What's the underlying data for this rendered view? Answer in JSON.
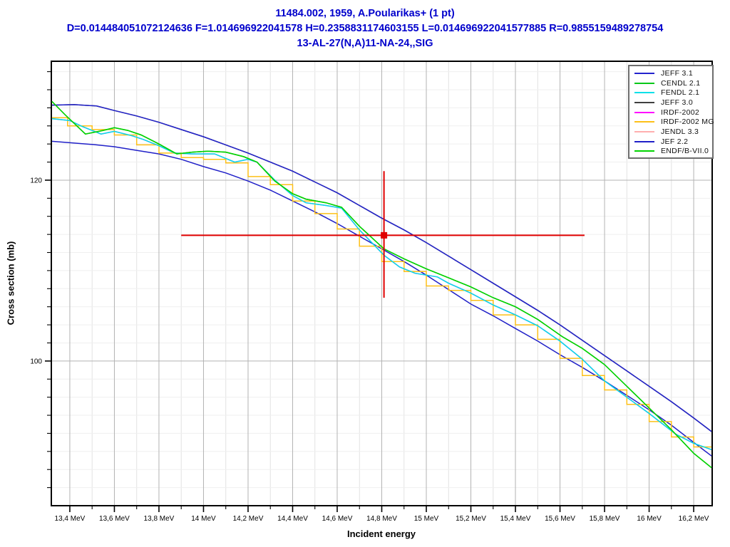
{
  "header": {
    "line1": "11484.002, 1959, A.Poularikas+ (1 pt)",
    "line2": "D=0.014484051072124636 F=1.014696922041578 H=0.2358831174603155 L=0.014696922041577885 R=0.9855159489278754",
    "line3": "13-AL-27(N,A)11-NA-24,,SIG",
    "color": "#0000cc"
  },
  "legend": {
    "entries": [
      {
        "label": "JEFF 3.1",
        "color": "#2323cd"
      },
      {
        "label": "CENDL 2.1",
        "color": "#00c818"
      },
      {
        "label": "FENDL 2.1",
        "color": "#00e0e8"
      },
      {
        "label": "JEFF 3.0",
        "color": "#3f3f3f"
      },
      {
        "label": "IRDF-2002",
        "color": "#ff00ff"
      },
      {
        "label": "IRDF-2002 MG",
        "color": "#fdc018"
      },
      {
        "label": "JENDL 3.3",
        "color": "#ffaeae"
      },
      {
        "label": "JEF 2.2",
        "color": "#2020c8"
      },
      {
        "label": "ENDF/B-VII.0",
        "color": "#00d400"
      }
    ]
  },
  "chart_data": {
    "type": "line",
    "title": "13-AL-27(N,A)11-NA-24,,SIG",
    "xlabel": "Incident energy",
    "ylabel": "Cross section (mb)",
    "x_unit": "MeV",
    "y_unit": "mb",
    "xlim": [
      13.317,
      16.283
    ],
    "ylim": [
      84.0,
      133.15
    ],
    "grid": {
      "major_color": "#b3b3b3",
      "minor_v_color": "#e2e2e2",
      "minor_h_color": "#efefef",
      "on": true
    },
    "x_major_ticks": [
      {
        "value": 13.4,
        "label": "13,4 MeV"
      },
      {
        "value": 13.6,
        "label": "13,6 MeV"
      },
      {
        "value": 13.8,
        "label": "13,8 MeV"
      },
      {
        "value": 14.0,
        "label": "14 MeV"
      },
      {
        "value": 14.2,
        "label": "14,2 MeV"
      },
      {
        "value": 14.4,
        "label": "14,4 MeV"
      },
      {
        "value": 14.6,
        "label": "14,6 MeV"
      },
      {
        "value": 14.8,
        "label": "14,8 MeV"
      },
      {
        "value": 15.0,
        "label": "15 MeV"
      },
      {
        "value": 15.2,
        "label": "15,2 MeV"
      },
      {
        "value": 15.4,
        "label": "15,4 MeV"
      },
      {
        "value": 15.6,
        "label": "15,6 MeV"
      },
      {
        "value": 15.8,
        "label": "15,8 MeV"
      },
      {
        "value": 16.0,
        "label": "16 MeV"
      },
      {
        "value": 16.2,
        "label": "16,2 MeV"
      }
    ],
    "x_minor_step": 0.1,
    "y_major_ticks": [
      {
        "value": 120,
        "label": "120"
      },
      {
        "value": 100,
        "label": "100"
      }
    ],
    "y_minor_step": 2,
    "legend_position": "top-right",
    "series": [
      {
        "name": "JEFF 3.0",
        "color": "#3f3f3f",
        "style": "line",
        "coincident_with": "JEFF 3.1",
        "points_ref": "JEFF 3.1"
      },
      {
        "name": "IRDF-2002",
        "color": "#ff00ff",
        "style": "line",
        "coincident_with": "FENDL 2.1",
        "points_ref": "FENDL 2.1"
      },
      {
        "name": "JENDL 3.3",
        "color": "#ffaeae",
        "style": "line",
        "coincident_with": "CENDL 2.1",
        "points_ref": "CENDL 2.1"
      },
      {
        "name": "JEFF 3.1",
        "color": "#2323cd",
        "style": "line",
        "points": [
          [
            13.32,
            128.3
          ],
          [
            13.42,
            128.35
          ],
          [
            13.52,
            128.2
          ],
          [
            13.6,
            127.7
          ],
          [
            13.7,
            127.1
          ],
          [
            13.8,
            126.4
          ],
          [
            13.9,
            125.6
          ],
          [
            14.0,
            124.8
          ],
          [
            14.1,
            123.9
          ],
          [
            14.2,
            123.0
          ],
          [
            14.3,
            122.0
          ],
          [
            14.4,
            121.0
          ],
          [
            14.5,
            119.8
          ],
          [
            14.6,
            118.6
          ],
          [
            14.7,
            117.2
          ],
          [
            14.8,
            115.8
          ],
          [
            14.9,
            114.5
          ],
          [
            15.0,
            113.1
          ],
          [
            15.1,
            111.6
          ],
          [
            15.2,
            110.1
          ],
          [
            15.3,
            108.6
          ],
          [
            15.4,
            107.1
          ],
          [
            15.5,
            105.6
          ],
          [
            15.6,
            104.0
          ],
          [
            15.7,
            102.3
          ],
          [
            15.8,
            100.6
          ],
          [
            15.9,
            98.9
          ],
          [
            16.0,
            97.2
          ],
          [
            16.1,
            95.5
          ],
          [
            16.2,
            93.7
          ],
          [
            16.28,
            92.2
          ]
        ]
      },
      {
        "name": "JEF 2.2",
        "color": "#2020c8",
        "style": "line",
        "points": [
          [
            13.32,
            124.3
          ],
          [
            13.5,
            123.95
          ],
          [
            13.6,
            123.7
          ],
          [
            13.7,
            123.3
          ],
          [
            13.8,
            122.9
          ],
          [
            13.9,
            122.3
          ],
          [
            14.0,
            121.5
          ],
          [
            14.1,
            120.8
          ],
          [
            14.2,
            119.9
          ],
          [
            14.3,
            118.9
          ],
          [
            14.4,
            117.7
          ],
          [
            14.5,
            116.5
          ],
          [
            14.6,
            115.2
          ],
          [
            14.7,
            113.8
          ],
          [
            14.8,
            112.4
          ],
          [
            14.9,
            111.0
          ],
          [
            15.0,
            109.5
          ],
          [
            15.1,
            107.9
          ],
          [
            15.2,
            106.3
          ],
          [
            15.3,
            105.0
          ],
          [
            15.4,
            103.6
          ],
          [
            15.5,
            102.2
          ],
          [
            15.6,
            100.7
          ],
          [
            15.7,
            99.3
          ],
          [
            15.8,
            97.8
          ],
          [
            15.9,
            96.2
          ],
          [
            16.0,
            94.6
          ],
          [
            16.1,
            92.9
          ],
          [
            16.2,
            91.0
          ],
          [
            16.28,
            89.5
          ]
        ]
      },
      {
        "name": "IRDF-2002 MG",
        "color": "#fdc018",
        "style": "steps",
        "points": [
          [
            13.32,
            126.9
          ],
          [
            13.39,
            126.0
          ],
          [
            13.5,
            125.6
          ],
          [
            13.6,
            125.0
          ],
          [
            13.7,
            123.9
          ],
          [
            13.8,
            123.0
          ],
          [
            13.9,
            122.5
          ],
          [
            14.0,
            122.3
          ],
          [
            14.1,
            121.9
          ],
          [
            14.2,
            120.4
          ],
          [
            14.3,
            119.5
          ],
          [
            14.4,
            117.7
          ],
          [
            14.5,
            116.3
          ],
          [
            14.6,
            114.6
          ],
          [
            14.7,
            112.7
          ],
          [
            14.8,
            111.0
          ],
          [
            14.9,
            109.9
          ],
          [
            15.0,
            108.3
          ],
          [
            15.1,
            107.8
          ],
          [
            15.2,
            106.7
          ],
          [
            15.3,
            105.1
          ],
          [
            15.4,
            104.0
          ],
          [
            15.5,
            102.4
          ],
          [
            15.6,
            100.3
          ],
          [
            15.7,
            98.4
          ],
          [
            15.8,
            96.8
          ],
          [
            15.9,
            95.2
          ],
          [
            16.0,
            93.3
          ],
          [
            16.1,
            91.6
          ],
          [
            16.2,
            90.5
          ],
          [
            16.28,
            90.5
          ]
        ]
      },
      {
        "name": "FENDL 2.1",
        "color": "#00e0e8",
        "style": "line",
        "points": [
          [
            13.32,
            126.8
          ],
          [
            13.4,
            126.6
          ],
          [
            13.45,
            126.0
          ],
          [
            13.54,
            125.1
          ],
          [
            13.6,
            125.4
          ],
          [
            13.68,
            124.9
          ],
          [
            13.73,
            124.5
          ],
          [
            13.8,
            123.8
          ],
          [
            13.87,
            123.0
          ],
          [
            13.95,
            122.9
          ],
          [
            14.05,
            122.9
          ],
          [
            14.14,
            122.0
          ],
          [
            14.2,
            122.3
          ],
          [
            14.24,
            122.0
          ],
          [
            14.32,
            120.0
          ],
          [
            14.4,
            118.3
          ],
          [
            14.46,
            117.5
          ],
          [
            14.55,
            117.2
          ],
          [
            14.62,
            116.9
          ],
          [
            14.7,
            114.5
          ],
          [
            14.81,
            111.7
          ],
          [
            14.88,
            110.4
          ],
          [
            14.95,
            109.7
          ],
          [
            15.05,
            109.3
          ],
          [
            15.1,
            108.6
          ],
          [
            15.2,
            107.5
          ],
          [
            15.3,
            106.2
          ],
          [
            15.4,
            105.1
          ],
          [
            15.5,
            103.9
          ],
          [
            15.6,
            102.2
          ],
          [
            15.7,
            100.2
          ],
          [
            15.8,
            97.8
          ],
          [
            15.9,
            96.0
          ],
          [
            16.0,
            94.2
          ],
          [
            16.12,
            91.9
          ],
          [
            16.2,
            90.9
          ],
          [
            16.28,
            90.2
          ]
        ]
      },
      {
        "name": "CENDL 2.1",
        "color": "#00c818",
        "style": "line",
        "points": [
          [
            13.32,
            128.7
          ],
          [
            13.38,
            127.2
          ],
          [
            13.47,
            125.1
          ],
          [
            13.55,
            125.5
          ],
          [
            13.6,
            125.8
          ],
          [
            13.66,
            125.5
          ],
          [
            13.72,
            125.0
          ],
          [
            13.8,
            124.0
          ],
          [
            13.88,
            122.9
          ],
          [
            13.95,
            123.1
          ],
          [
            14.02,
            123.2
          ],
          [
            14.1,
            123.1
          ],
          [
            14.18,
            122.6
          ],
          [
            14.24,
            122.0
          ],
          [
            14.32,
            119.9
          ],
          [
            14.4,
            118.5
          ],
          [
            14.46,
            117.9
          ],
          [
            14.55,
            117.5
          ],
          [
            14.62,
            117.0
          ],
          [
            14.7,
            114.9
          ],
          [
            14.81,
            112.4
          ],
          [
            14.9,
            111.3
          ],
          [
            15.0,
            110.2
          ],
          [
            15.1,
            109.2
          ],
          [
            15.2,
            108.2
          ],
          [
            15.3,
            107.0
          ],
          [
            15.4,
            106.0
          ],
          [
            15.5,
            104.6
          ],
          [
            15.61,
            102.7
          ],
          [
            15.7,
            101.4
          ],
          [
            15.8,
            99.6
          ],
          [
            15.9,
            97.2
          ],
          [
            16.0,
            94.8
          ],
          [
            16.1,
            92.4
          ],
          [
            16.2,
            89.8
          ],
          [
            16.28,
            88.2
          ]
        ]
      },
      {
        "name": "ENDF/B-VII.0",
        "color": "#00d400",
        "style": "line",
        "coincident_with": "CENDL 2.1",
        "points_ref": "CENDL 2.1"
      }
    ],
    "experimental_point": {
      "dataset": "11484.002, 1959, A.Poularikas+ (1 pt)",
      "energy_mev": 14.81,
      "cross_section_mb": 113.9,
      "energy_err_minus": 0.91,
      "energy_err_plus": 0.9,
      "value_err_minus": 6.9,
      "value_err_plus": 7.1,
      "color": "#e00000",
      "marker": "square"
    }
  }
}
